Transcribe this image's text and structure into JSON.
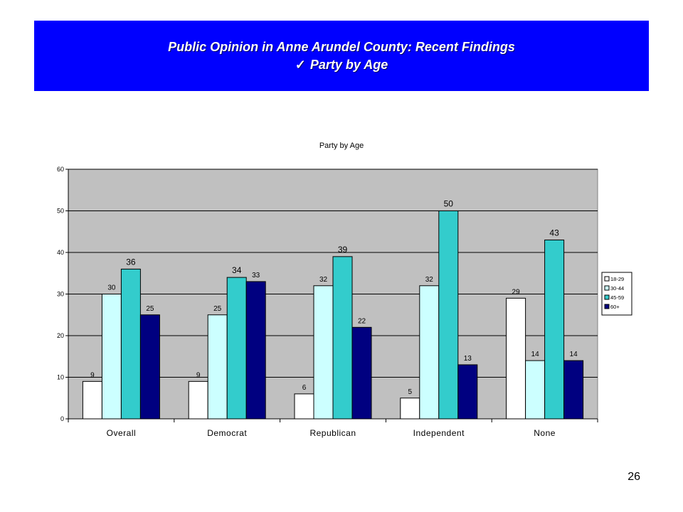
{
  "banner": {
    "title": "Public Opinion in Anne Arundel County: Recent Findings",
    "subtitle": "Party by Age",
    "check_glyph": "✓"
  },
  "slide_number": "26",
  "colors": {
    "banner_bg": "#0000ff",
    "plot_bg": "#c0c0c0",
    "series": [
      "#ffffff",
      "#ccffff",
      "#33cccc",
      "#000080"
    ]
  },
  "chart_data": {
    "type": "bar",
    "title": "Party by Age",
    "categories": [
      "Overall",
      "Democrat",
      "Republican",
      "Independent",
      "None"
    ],
    "series": [
      {
        "name": "18-29",
        "values": [
          9,
          9,
          6,
          5,
          29
        ]
      },
      {
        "name": "30-44",
        "values": [
          30,
          25,
          32,
          32,
          14
        ]
      },
      {
        "name": "45-59",
        "values": [
          36,
          34,
          39,
          50,
          43
        ]
      },
      {
        "name": "60+",
        "values": [
          25,
          33,
          22,
          13,
          14
        ]
      }
    ],
    "ylim": [
      0,
      60
    ],
    "yticks": [
      0,
      10,
      20,
      30,
      40,
      50,
      60
    ],
    "grid": true,
    "legend": "right"
  }
}
